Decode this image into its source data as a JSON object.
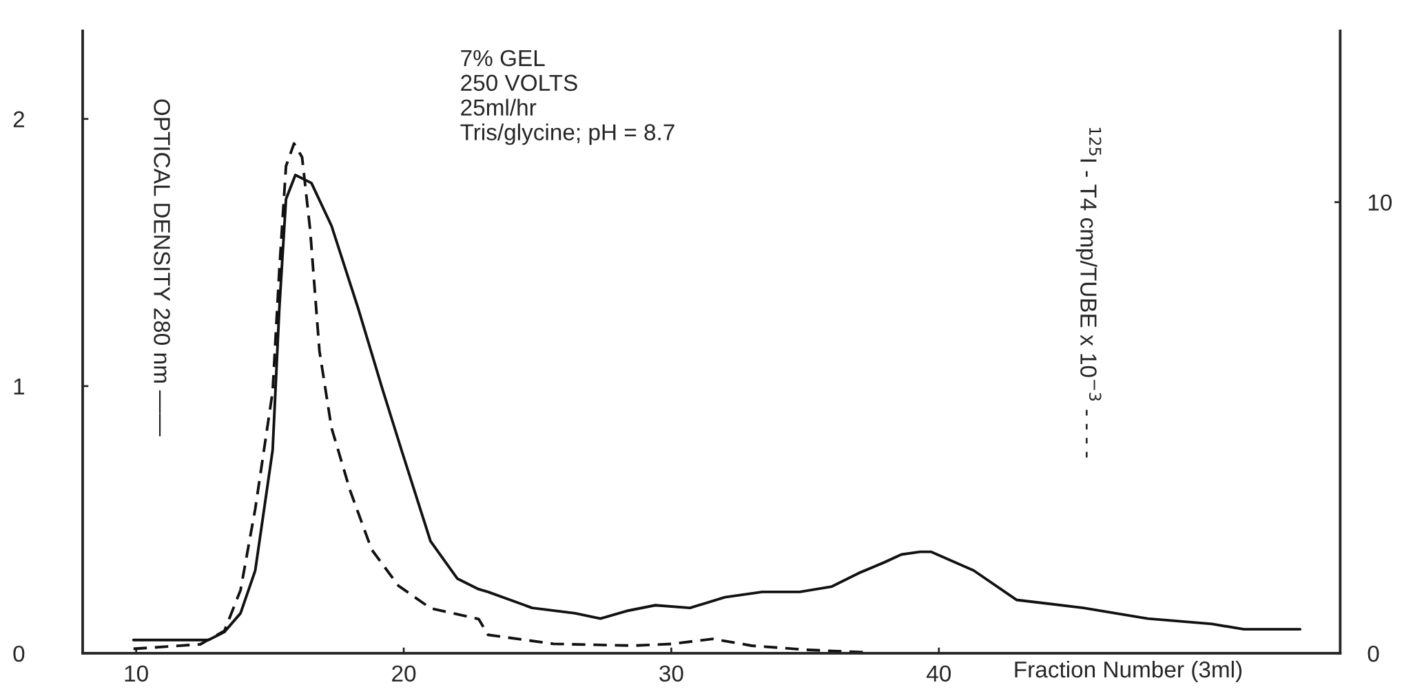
{
  "chart_data": {
    "type": "line",
    "xlabel": "Fraction Number (3ml)",
    "ylabel": "OPTICAL DENSITY 280 nm ——",
    "y2label": "$^{125}$I - T4 cmp/TUBE x 10$^{−3}$ - - - -",
    "annotations": [
      "7% GEL\n250 VOLTS\n25ml/hr\nTris/glycine; pH = 8.7"
    ],
    "xlim": [
      8,
      55
    ],
    "xticks": [
      10,
      20,
      30,
      40
    ],
    "ylim": [
      0,
      2.33
    ],
    "yticks": [
      0,
      1,
      2
    ],
    "y2lim": [
      0,
      13.8
    ],
    "y2ticks": [
      0,
      10
    ],
    "grid": false,
    "legend": false,
    "marker": "none",
    "series": [
      {
        "color": "#111111",
        "line_style": "solid",
        "x": [
          9.9,
          12.7,
          13.3,
          13.9,
          14.45,
          15.1,
          15.35,
          15.6,
          15.95,
          16.55,
          17.3,
          18.3,
          19.2,
          19.95,
          21.0,
          22.0,
          22.8,
          23.15,
          24.8,
          26.4,
          27.35,
          28.4,
          29.4,
          30.7,
          32.0,
          33.4,
          34.8,
          36.0,
          37.0,
          37.95,
          38.6,
          39.3,
          39.7,
          41.3,
          42.9,
          45.4,
          47.8,
          50.2,
          51.4,
          53.5
        ],
        "values": [
          0.05,
          0.05,
          0.08,
          0.15,
          0.31,
          0.76,
          1.29,
          1.7,
          1.79,
          1.76,
          1.6,
          1.29,
          0.99,
          0.75,
          0.42,
          0.28,
          0.24,
          0.23,
          0.17,
          0.15,
          0.13,
          0.16,
          0.18,
          0.17,
          0.21,
          0.23,
          0.23,
          0.25,
          0.3,
          0.34,
          0.37,
          0.38,
          0.38,
          0.31,
          0.2,
          0.17,
          0.13,
          0.11,
          0.09,
          0.09
        ]
      },
      {
        "color": "#111111",
        "line_style": "dashed",
        "axis": "y2",
        "x": [
          9.9,
          12.4,
          13.3,
          13.9,
          14.45,
          15.1,
          15.35,
          15.6,
          15.9,
          16.2,
          16.5,
          16.85,
          17.3,
          18.0,
          18.8,
          19.8,
          21.0,
          22.8,
          23.15,
          25.6,
          28.6,
          30.05,
          31.55,
          33.0,
          35.0,
          37.3
        ],
        "values": [
          0.1,
          0.2,
          0.5,
          1.4,
          3.2,
          5.8,
          8.5,
          10.8,
          11.3,
          11.0,
          9.4,
          6.7,
          5.0,
          3.6,
          2.3,
          1.5,
          1.0,
          0.76,
          0.41,
          0.21,
          0.17,
          0.21,
          0.32,
          0.17,
          0.08,
          0.02
        ]
      }
    ]
  }
}
